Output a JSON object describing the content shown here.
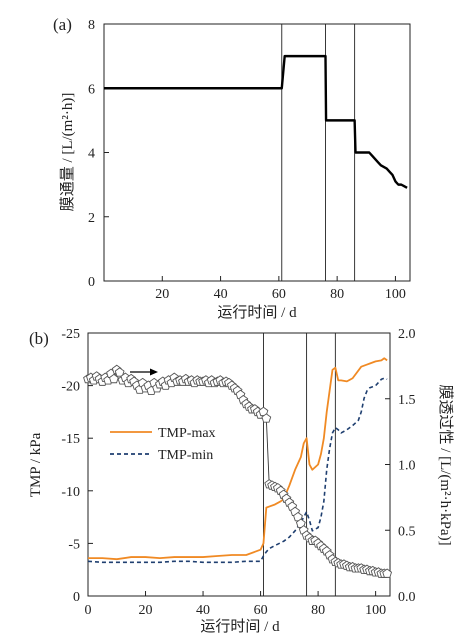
{
  "colors": {
    "axis": "#222222",
    "flux_line": "#000000",
    "tmp_max": "#f08a24",
    "tmp_min": "#1f3f70",
    "permeability_marker": "#555555",
    "arrow": "#000000"
  },
  "chart_data": [
    {
      "type": "line",
      "panel_label": "(a)",
      "xlabel": "运行时间 / d",
      "ylabel": "膜通量 / [L/(m²·h)]",
      "xlim": [
        0,
        105
      ],
      "ylim": [
        0,
        8
      ],
      "xticks": [
        20,
        40,
        60,
        80,
        100
      ],
      "yticks": [
        0,
        2,
        4,
        6,
        8
      ],
      "xtick_labels": [
        "20",
        "40",
        "60",
        "80",
        "100"
      ],
      "ytick_labels": [
        "0",
        "2",
        "4",
        "6",
        "8"
      ],
      "vlines": [
        61,
        76,
        86
      ],
      "series": [
        {
          "x": [
            0,
            61,
            62,
            75,
            76,
            76.2,
            85,
            86,
            86.3,
            89,
            91,
            92,
            93,
            94,
            95,
            96,
            97,
            98,
            99,
            100,
            101,
            102,
            103,
            104
          ],
          "y": [
            6,
            6,
            7,
            7,
            7,
            5,
            5,
            5,
            4,
            4,
            4,
            3.9,
            3.8,
            3.7,
            3.6,
            3.55,
            3.5,
            3.4,
            3.3,
            3.1,
            3.0,
            3.0,
            2.95,
            2.9
          ]
        }
      ]
    },
    {
      "type": "line",
      "panel_label": "(b)",
      "xlabel": "运行时间 / d",
      "ylabel": "TMP / kPa",
      "y2label": "膜透过性 / [L/(m²·h·kPa)]",
      "xlim": [
        0,
        105
      ],
      "ylim": [
        0,
        -25
      ],
      "y2lim": [
        0,
        2.0
      ],
      "xticks": [
        0,
        20,
        40,
        60,
        80,
        100
      ],
      "yticks": [
        0,
        -5,
        -10,
        -15,
        -20,
        -25
      ],
      "y2ticks": [
        0,
        0.5,
        1.0,
        1.5,
        2.0
      ],
      "xtick_labels": [
        "0",
        "20",
        "40",
        "60",
        "80",
        "100"
      ],
      "ytick_labels": [
        "0",
        "-5",
        "-10",
        "-15",
        "-20",
        "-25"
      ],
      "y2tick_labels": [
        "0.0",
        "0.5",
        "1.0",
        "1.5",
        "2.0"
      ],
      "vlines": [
        61,
        76,
        86
      ],
      "series": [
        {
          "name": "TMP-max",
          "axis": "left",
          "x": [
            0,
            5,
            10,
            15,
            20,
            25,
            30,
            35,
            40,
            45,
            50,
            55,
            58,
            60,
            61,
            62,
            63,
            65,
            67,
            68,
            70,
            72,
            74,
            75,
            76,
            77,
            78,
            80,
            81,
            82,
            83,
            84,
            85,
            86,
            87,
            88,
            90,
            92,
            95,
            97,
            98,
            100,
            102,
            103,
            104
          ],
          "y": [
            -3.6,
            -3.6,
            -3.5,
            -3.7,
            -3.7,
            -3.6,
            -3.7,
            -3.7,
            -3.7,
            -3.8,
            -3.9,
            -3.9,
            -4.2,
            -4.4,
            -5,
            -8.4,
            -8.5,
            -8.7,
            -9,
            -9.2,
            -10.5,
            -12,
            -13.2,
            -14.5,
            -15,
            -12.5,
            -12,
            -12.5,
            -13.5,
            -15,
            -17.5,
            -19.5,
            -21.5,
            -21.7,
            -20.5,
            -20.5,
            -20.4,
            -20.7,
            -21.8,
            -22,
            -22.1,
            -22.3,
            -22.4,
            -22.6,
            -22.4
          ]
        },
        {
          "name": "TMP-min",
          "axis": "left",
          "x": [
            0,
            5,
            10,
            15,
            20,
            25,
            30,
            35,
            40,
            45,
            50,
            55,
            58,
            60,
            61,
            62,
            63,
            65,
            68,
            70,
            72,
            74,
            75,
            76,
            77,
            78,
            80,
            81,
            82,
            83,
            84,
            85,
            86,
            87,
            88,
            90,
            92,
            94,
            95,
            96,
            97,
            98,
            100,
            101,
            102,
            103,
            104
          ],
          "y": [
            -3.3,
            -3.2,
            -3.2,
            -3.2,
            -3.2,
            -3.2,
            -3.3,
            -3.3,
            -3.2,
            -3.2,
            -3.2,
            -3.3,
            -3.3,
            -3.3,
            -3.8,
            -4.2,
            -4.5,
            -4.8,
            -5.2,
            -5.6,
            -6.2,
            -7,
            -7.5,
            -8,
            -7.2,
            -6.2,
            -6.5,
            -7.5,
            -9,
            -12,
            -14,
            -15.5,
            -16,
            -15.8,
            -15.5,
            -15.8,
            -16.2,
            -16.7,
            -17.5,
            -18.8,
            -19.5,
            -19.8,
            -20,
            -20.3,
            -20.6,
            -20.7,
            -20.6
          ]
        },
        {
          "name": "",
          "axis": "right",
          "marker": "pentagon",
          "x": [
            0,
            1,
            2,
            3,
            4,
            5,
            6,
            7,
            8,
            9,
            10,
            11,
            12,
            13,
            14,
            15,
            16,
            17,
            18,
            19,
            20,
            21,
            22,
            23,
            24,
            25,
            26,
            27,
            28,
            29,
            30,
            31,
            32,
            33,
            34,
            35,
            36,
            37,
            38,
            39,
            40,
            41,
            42,
            43,
            44,
            45,
            46,
            47,
            48,
            49,
            50,
            51,
            52,
            53,
            54,
            55,
            56,
            57,
            58,
            59,
            60,
            61,
            62,
            63,
            64,
            65,
            66,
            67,
            68,
            69,
            70,
            71,
            72,
            73,
            74,
            75,
            76,
            77,
            78,
            79,
            80,
            81,
            82,
            83,
            84,
            85,
            86,
            87,
            88,
            89,
            90,
            91,
            92,
            93,
            94,
            95,
            96,
            97,
            98,
            99,
            100,
            101,
            102,
            103,
            104
          ],
          "y": [
            1.65,
            1.66,
            1.64,
            1.67,
            1.65,
            1.63,
            1.66,
            1.64,
            1.69,
            1.65,
            1.72,
            1.7,
            1.64,
            1.66,
            1.62,
            1.65,
            1.63,
            1.6,
            1.57,
            1.62,
            1.58,
            1.6,
            1.56,
            1.62,
            1.58,
            1.61,
            1.63,
            1.6,
            1.64,
            1.62,
            1.66,
            1.63,
            1.64,
            1.63,
            1.65,
            1.63,
            1.64,
            1.62,
            1.64,
            1.63,
            1.63,
            1.64,
            1.62,
            1.64,
            1.62,
            1.63,
            1.64,
            1.62,
            1.63,
            1.62,
            1.6,
            1.58,
            1.56,
            1.53,
            1.49,
            1.46,
            1.44,
            1.42,
            1.42,
            1.4,
            1.38,
            1.4,
            1.35,
            0.85,
            0.84,
            0.83,
            0.82,
            0.8,
            0.77,
            0.74,
            0.71,
            0.68,
            0.64,
            0.6,
            0.55,
            0.5,
            0.46,
            0.44,
            0.42,
            0.42,
            0.4,
            0.38,
            0.36,
            0.34,
            0.31,
            0.28,
            0.26,
            0.25,
            0.24,
            0.24,
            0.23,
            0.22,
            0.22,
            0.21,
            0.21,
            0.21,
            0.2,
            0.2,
            0.19,
            0.19,
            0.18,
            0.18,
            0.17,
            0.17,
            0.17
          ]
        }
      ]
    }
  ]
}
